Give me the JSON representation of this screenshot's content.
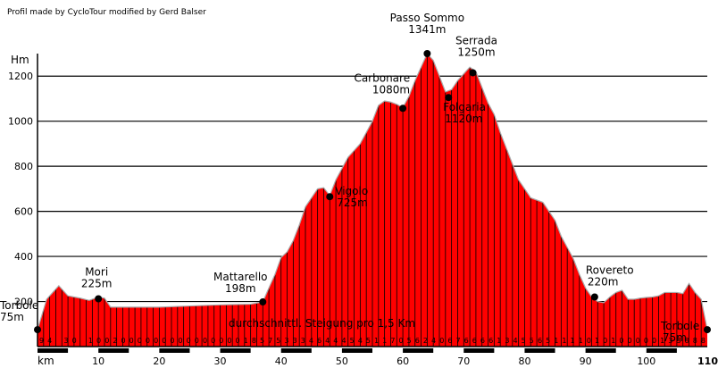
{
  "chart_data": {
    "type": "area",
    "credit": "Profil made by CycloTour modified by Gerd Balser",
    "ylabel": "Hm",
    "xlabel": "km",
    "ylim": [
      0,
      1300
    ],
    "xlim": [
      0,
      110
    ],
    "yticks": [
      200,
      400,
      600,
      800,
      1000,
      1200
    ],
    "xticks": [
      10,
      20,
      30,
      40,
      50,
      60,
      70,
      80,
      90,
      100,
      110
    ],
    "grade_caption": "durchschnittl. Steigung pro 1,5 Km",
    "colors": {
      "fill": "#ff0000",
      "bars": "#000000",
      "marker": "#000000",
      "outline": "#aaaaaa"
    },
    "profile": {
      "x": [
        0,
        1.5,
        2.5,
        3.5,
        5,
        7,
        8.5,
        10,
        11,
        12,
        15,
        20,
        25,
        30,
        35,
        37,
        38,
        39,
        40,
        41,
        42,
        43,
        44,
        45,
        46,
        47,
        48,
        49,
        50,
        51,
        52,
        53,
        54,
        55,
        56,
        57,
        58,
        59,
        60,
        61,
        62,
        63,
        64,
        65,
        66,
        67,
        68,
        69,
        70,
        71,
        72,
        73,
        74,
        75,
        76,
        77,
        78,
        79,
        80,
        81,
        82,
        83,
        84,
        85,
        86,
        87,
        88,
        89,
        90,
        91,
        92,
        93,
        94,
        95,
        96,
        97,
        98,
        99,
        100,
        101,
        102,
        103,
        104,
        105,
        106,
        107,
        108,
        109,
        110
      ],
      "y": [
        75,
        210,
        240,
        270,
        225,
        215,
        205,
        220,
        215,
        175,
        175,
        175,
        180,
        185,
        188,
        198,
        260,
        320,
        395,
        420,
        470,
        540,
        620,
        660,
        700,
        705,
        670,
        740,
        790,
        840,
        870,
        900,
        950,
        1000,
        1070,
        1090,
        1085,
        1075,
        1060,
        1110,
        1180,
        1240,
        1300,
        1270,
        1200,
        1130,
        1140,
        1180,
        1210,
        1240,
        1220,
        1150,
        1080,
        1030,
        950,
        880,
        810,
        740,
        700,
        660,
        650,
        640,
        600,
        560,
        490,
        440,
        390,
        320,
        260,
        220,
        200,
        195,
        220,
        240,
        250,
        210,
        210,
        215,
        218,
        220,
        225,
        240,
        240,
        240,
        235,
        280,
        240,
        210,
        75
      ]
    },
    "waypoints": [
      {
        "name": "Torbole",
        "elev": "75m",
        "x": 0,
        "y": 75
      },
      {
        "name": "Mori",
        "elev": "225m",
        "x": 10,
        "y": 212
      },
      {
        "name": "Mattarello",
        "elev": "198m",
        "x": 37,
        "y": 198
      },
      {
        "name": "Vigolo",
        "elev": "725m",
        "x": 48,
        "y": 665
      },
      {
        "name": "Carbonare",
        "elev": "1080m",
        "x": 60,
        "y": 1057
      },
      {
        "name": "Passo Sommo",
        "elev": "1341m",
        "x": 64,
        "y": 1300
      },
      {
        "name": "Folgaria",
        "elev": "1120m",
        "x": 67.5,
        "y": 1105
      },
      {
        "name": "Serrada",
        "elev": "1250m",
        "x": 71.5,
        "y": 1215
      },
      {
        "name": "Rovereto",
        "elev": "220m",
        "x": 91.5,
        "y": 220
      },
      {
        "name": "Torbole",
        "elev": "75m",
        "x": 110,
        "y": 75
      }
    ],
    "grades": [
      "9",
      "4",
      "",
      "3",
      "0",
      "",
      "1",
      "0",
      "0",
      "2",
      "0",
      "0",
      "0",
      "0",
      "0",
      "0",
      "0",
      "0",
      "0",
      "0",
      "0",
      "0",
      "0",
      "0",
      "0",
      "1",
      "8",
      "5",
      "7",
      "5",
      "3",
      "3",
      "3",
      "4",
      "6",
      "4",
      "4",
      "4",
      "5",
      "4",
      "5",
      "1",
      "1",
      "7",
      "0",
      "5",
      "6",
      "2",
      "4",
      "0",
      "6",
      "7",
      "6",
      "6",
      "6",
      "6",
      "1",
      "3",
      "4",
      "5",
      "5",
      "6",
      "5",
      "1",
      "1",
      "1",
      "1",
      "0",
      "1",
      "0",
      "1",
      "0",
      "0",
      "0",
      "0",
      "0",
      "1",
      "3",
      "3",
      "8",
      "8",
      "8"
    ]
  }
}
